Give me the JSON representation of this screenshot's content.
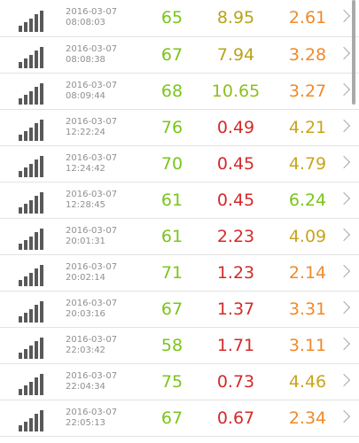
{
  "rows": [
    {
      "date": "2016-03-07",
      "time": "08:08:03",
      "v1": "65",
      "v2": "8.95",
      "v3": "2.61",
      "c1": "#7ac51b",
      "c2": "#b9a31a",
      "c3": "#f08a2a"
    },
    {
      "date": "2016-03-07",
      "time": "08:08:38",
      "v1": "67",
      "v2": "7.94",
      "v3": "3.28",
      "c1": "#7ac51b",
      "c2": "#b9a31a",
      "c3": "#f08a2a"
    },
    {
      "date": "2016-03-07",
      "time": "08:09:44",
      "v1": "68",
      "v2": "10.65",
      "v3": "3.27",
      "c1": "#7ac51b",
      "c2": "#8ebf1f",
      "c3": "#f08a2a"
    },
    {
      "date": "2016-03-07",
      "time": "12:22:24",
      "v1": "76",
      "v2": "0.49",
      "v3": "4.21",
      "c1": "#7ac51b",
      "c2": "#d42a2a",
      "c3": "#c8a51c"
    },
    {
      "date": "2016-03-07",
      "time": "12:24:42",
      "v1": "70",
      "v2": "0.45",
      "v3": "4.79",
      "c1": "#7ac51b",
      "c2": "#d42a2a",
      "c3": "#c8a51c"
    },
    {
      "date": "2016-03-07",
      "time": "12:28:45",
      "v1": "61",
      "v2": "0.45",
      "v3": "6.24",
      "c1": "#7ac51b",
      "c2": "#d42a2a",
      "c3": "#7ac51b"
    },
    {
      "date": "2016-03-07",
      "time": "20:01:31",
      "v1": "61",
      "v2": "2.23",
      "v3": "4.09",
      "c1": "#7ac51b",
      "c2": "#d42a2a",
      "c3": "#c8a51c"
    },
    {
      "date": "2016-03-07",
      "time": "20:02:14",
      "v1": "71",
      "v2": "1.23",
      "v3": "2.14",
      "c1": "#7ac51b",
      "c2": "#d42a2a",
      "c3": "#f08a2a"
    },
    {
      "date": "2016-03-07",
      "time": "20:03:16",
      "v1": "67",
      "v2": "1.37",
      "v3": "3.31",
      "c1": "#7ac51b",
      "c2": "#d42a2a",
      "c3": "#f08a2a"
    },
    {
      "date": "2016-03-07",
      "time": "22:03:42",
      "v1": "58",
      "v2": "1.71",
      "v3": "3.11",
      "c1": "#7ac51b",
      "c2": "#d42a2a",
      "c3": "#f08a2a"
    },
    {
      "date": "2016-03-07",
      "time": "22:04:34",
      "v1": "75",
      "v2": "0.73",
      "v3": "4.46",
      "c1": "#7ac51b",
      "c2": "#d42a2a",
      "c3": "#c8a51c"
    },
    {
      "date": "2016-03-07",
      "time": "22:05:13",
      "v1": "67",
      "v2": "0.67",
      "v3": "2.34",
      "c1": "#7ac51b",
      "c2": "#d42a2a",
      "c3": "#f08a2a"
    }
  ],
  "icons": {
    "signal": "signal-bars-icon",
    "chevron": "chevron-right-icon"
  }
}
